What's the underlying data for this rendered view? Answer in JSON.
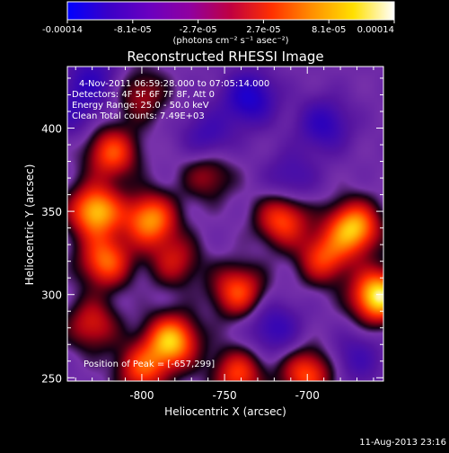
{
  "colorbar": {
    "ticks": [
      "-0.00014",
      "-8.1e-05",
      "-2.7e-05",
      "2.7e-05",
      "8.1e-05",
      "0.00014"
    ],
    "units": "(photons cm⁻² s⁻¹ asec⁻²)",
    "stops": [
      "#0000ff",
      "#3a00c8",
      "#6a00c0",
      "#9000a0",
      "#c00040",
      "#ff3000",
      "#ff9000",
      "#ffe000",
      "#ffffff"
    ]
  },
  "plot": {
    "title": "Reconstructed RHESSI Image",
    "info": [
      "4-Nov-2011 06:59:28.000 to 07:05:14.000",
      "Detectors: 4F 5F 6F 7F 8F, Att 0",
      "Energy Range: 25.0 - 50.0 keV",
      "Clean    Total counts: 7.49E+03"
    ],
    "peak_text": "Position of Peak = [-657,299]",
    "footer_date": "11-Aug-2013 23:16"
  },
  "chart_data": {
    "type": "heatmap",
    "title": "Reconstructed RHESSI Image",
    "xlabel": "Heliocentric X (arcsec)",
    "ylabel": "Heliocentric Y (arcsec)",
    "xlim": [
      -845,
      -654
    ],
    "ylim": [
      248,
      437
    ],
    "xticks": [
      -800,
      -750,
      -700
    ],
    "yticks": [
      250,
      300,
      350,
      400
    ],
    "color_range": [
      -0.00014,
      0.00014
    ],
    "peak": {
      "x": -657,
      "y": 299
    },
    "blobs": [
      {
        "x": -657,
        "y": 299,
        "v": 1.0
      },
      {
        "x": -672,
        "y": 340,
        "v": 0.85
      },
      {
        "x": -690,
        "y": 322,
        "v": 0.55
      },
      {
        "x": -715,
        "y": 345,
        "v": 0.6
      },
      {
        "x": -742,
        "y": 302,
        "v": 0.6
      },
      {
        "x": -795,
        "y": 345,
        "v": 0.75
      },
      {
        "x": -828,
        "y": 350,
        "v": 0.85
      },
      {
        "x": -822,
        "y": 320,
        "v": 0.65
      },
      {
        "x": -818,
        "y": 385,
        "v": 0.6
      },
      {
        "x": -782,
        "y": 272,
        "v": 0.85
      },
      {
        "x": -800,
        "y": 255,
        "v": 0.55
      },
      {
        "x": -742,
        "y": 252,
        "v": 0.55
      },
      {
        "x": -700,
        "y": 252,
        "v": 0.6
      },
      {
        "x": -830,
        "y": 282,
        "v": 0.45
      },
      {
        "x": -760,
        "y": 372,
        "v": 0.35
      },
      {
        "x": -780,
        "y": 320,
        "v": 0.4
      },
      {
        "x": -735,
        "y": 418,
        "v": -0.6
      },
      {
        "x": -760,
        "y": 395,
        "v": -0.35
      },
      {
        "x": -690,
        "y": 402,
        "v": -0.45
      },
      {
        "x": -720,
        "y": 280,
        "v": -0.4
      },
      {
        "x": -670,
        "y": 262,
        "v": -0.3
      },
      {
        "x": -842,
        "y": 410,
        "v": -0.3
      },
      {
        "x": -830,
        "y": 430,
        "v": -0.4
      },
      {
        "x": -800,
        "y": 420,
        "v": 0.35
      },
      {
        "x": -710,
        "y": 370,
        "v": -0.3
      }
    ]
  }
}
